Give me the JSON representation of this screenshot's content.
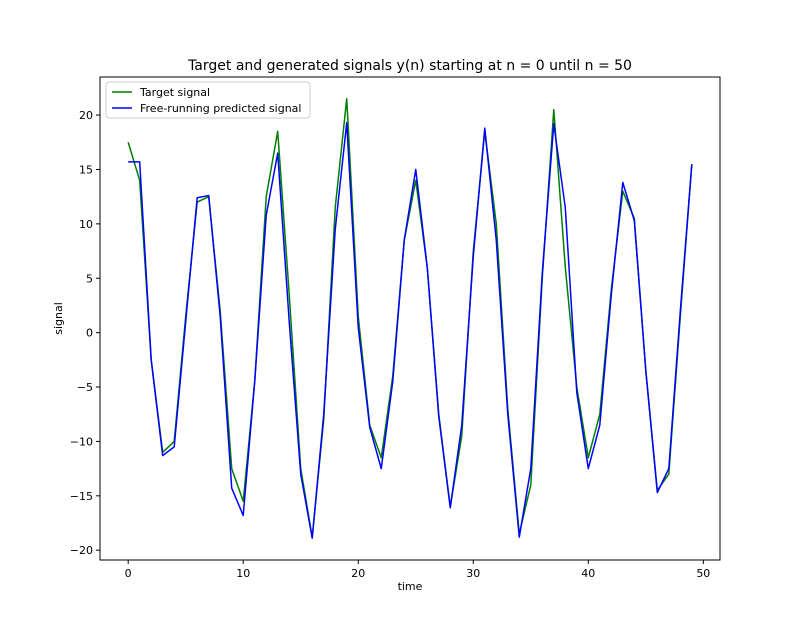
{
  "chart_data": {
    "type": "line",
    "title": "Target and generated signals y(n) starting at n = 0 until n = 50",
    "xlabel": "time",
    "ylabel": "signal",
    "xlim": [
      -2.45,
      51.45
    ],
    "ylim": [
      -20.9,
      23.5
    ],
    "xticks": [
      0,
      10,
      20,
      30,
      40,
      50
    ],
    "yticks": [
      -20,
      -15,
      -10,
      -5,
      0,
      5,
      10,
      15,
      20
    ],
    "grid": false,
    "legend_position": "top-left",
    "x": [
      0,
      1,
      2,
      3,
      4,
      5,
      6,
      7,
      8,
      9,
      10,
      11,
      12,
      13,
      14,
      15,
      16,
      17,
      18,
      19,
      20,
      21,
      22,
      23,
      24,
      25,
      26,
      27,
      28,
      29,
      30,
      31,
      32,
      33,
      34,
      35,
      36,
      37,
      38,
      39,
      40,
      41,
      42,
      43,
      44,
      45,
      46,
      47,
      48,
      49
    ],
    "series": [
      {
        "name": "Target signal",
        "color": "#008000",
        "values": [
          17.5,
          14.0,
          -2.5,
          -11.0,
          -10.0,
          1.5,
          12.0,
          12.5,
          2.0,
          -12.5,
          -15.5,
          -4.5,
          12.5,
          18.5,
          3.5,
          -12.5,
          -18.8,
          -8.0,
          11.5,
          21.5,
          1.5,
          -8.5,
          -11.5,
          -4.0,
          8.5,
          14.0,
          6.0,
          -7.5,
          -16.0,
          -9.5,
          7.5,
          18.5,
          10.0,
          -7.0,
          -18.5,
          -14.0,
          5.0,
          20.5,
          6.0,
          -5.0,
          -11.5,
          -7.5,
          4.0,
          13.0,
          10.5,
          -3.5,
          -14.5,
          -13.0,
          1.5,
          15.5
        ]
      },
      {
        "name": "Free-running predicted signal",
        "color": "#0000ff",
        "values": [
          15.7,
          15.7,
          -2.5,
          -11.3,
          -10.5,
          1.0,
          12.4,
          12.6,
          1.5,
          -14.3,
          -16.8,
          -4.5,
          10.8,
          16.5,
          1.0,
          -13.0,
          -18.9,
          -7.5,
          9.5,
          19.3,
          0.5,
          -8.7,
          -12.5,
          -4.5,
          8.5,
          15.0,
          6.0,
          -7.7,
          -16.1,
          -8.5,
          7.0,
          18.8,
          8.5,
          -7.5,
          -18.8,
          -12.5,
          5.5,
          19.2,
          11.5,
          -5.5,
          -12.5,
          -8.5,
          3.5,
          13.8,
          10.3,
          -3.5,
          -14.7,
          -12.5,
          2.0,
          15.5
        ]
      }
    ]
  }
}
